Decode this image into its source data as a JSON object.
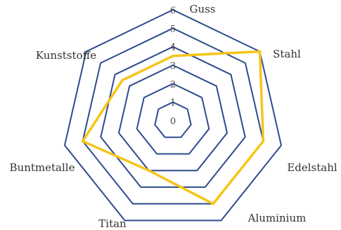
{
  "chart_data": {
    "type": "radar",
    "categories": [
      "Guss",
      "Stahl",
      "Edelstahl",
      "Aluminium",
      "Titan",
      "Buntmetalle",
      "Kunststoffe"
    ],
    "tick_labels": [
      "0",
      "1",
      "2",
      "3",
      "4",
      "5",
      "6"
    ],
    "range": [
      0,
      6
    ],
    "rings": [
      1,
      2,
      3,
      4,
      5,
      6
    ],
    "series": [
      {
        "values": [
          3.5,
          6,
          5,
          5,
          3,
          5,
          3.5
        ]
      }
    ],
    "colors": {
      "grid": "#2e4a8f",
      "series": "#f5c518"
    },
    "legend": "none"
  }
}
